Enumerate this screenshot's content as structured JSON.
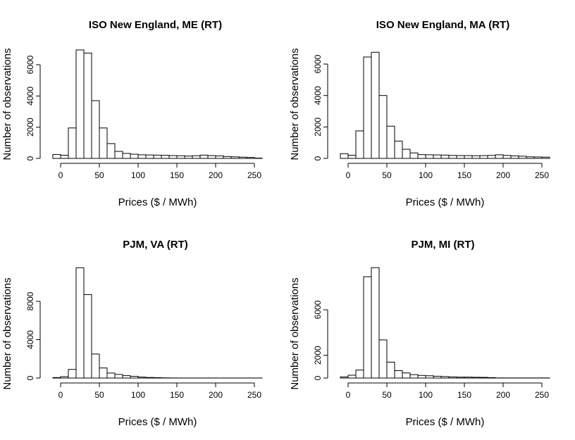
{
  "chart_data": [
    {
      "type": "bar",
      "title": "ISO New England, ME (RT)",
      "xlabel": "Prices ($ / MWh)",
      "ylabel": "Number of observations",
      "bin_width": 10,
      "bin_start": -20,
      "values": [
        0,
        250,
        200,
        1950,
        6950,
        6750,
        3700,
        1950,
        950,
        450,
        320,
        270,
        230,
        220,
        210,
        200,
        180,
        170,
        150,
        170,
        210,
        180,
        160,
        120,
        100,
        80,
        60,
        20
      ],
      "xticks": [
        0,
        50,
        100,
        150,
        200,
        250
      ],
      "yticks": [
        0,
        2000,
        4000,
        6000
      ],
      "xlim": [
        -20,
        260
      ],
      "ylim": [
        0,
        7000
      ]
    },
    {
      "type": "bar",
      "title": "ISO New England, MA (RT)",
      "xlabel": "Prices ($ / MWh)",
      "ylabel": "Number of observations",
      "bin_width": 10,
      "bin_start": -20,
      "values": [
        0,
        300,
        200,
        1750,
        6450,
        6750,
        4000,
        2050,
        1100,
        580,
        350,
        240,
        230,
        220,
        210,
        190,
        180,
        180,
        170,
        180,
        190,
        230,
        190,
        160,
        140,
        100,
        90,
        80
      ],
      "xticks": [
        0,
        50,
        100,
        150,
        200,
        250
      ],
      "yticks": [
        0,
        2000,
        4000,
        6000
      ],
      "xlim": [
        -20,
        260
      ],
      "ylim": [
        0,
        7000
      ]
    },
    {
      "type": "bar",
      "title": "PJM, VA (RT)",
      "xlabel": "Prices ($ / MWh)",
      "ylabel": "Number of observations",
      "bin_width": 10,
      "bin_start": -20,
      "values": [
        0,
        50,
        150,
        900,
        11500,
        8700,
        2500,
        1050,
        520,
        380,
        250,
        180,
        100,
        60,
        40,
        20,
        10,
        5,
        5,
        5,
        5,
        5,
        5,
        5,
        5,
        5,
        5,
        5
      ],
      "xticks": [
        0,
        50,
        100,
        150,
        200,
        250
      ],
      "yticks": [
        0,
        4000,
        8000
      ],
      "xlim": [
        -20,
        260
      ],
      "ylim": [
        0,
        12000
      ]
    },
    {
      "type": "bar",
      "title": "PJM, MI (RT)",
      "xlabel": "Prices ($ / MWh)",
      "ylabel": "Number of observations",
      "bin_width": 10,
      "bin_start": -20,
      "values": [
        0,
        100,
        250,
        700,
        8900,
        9700,
        3350,
        1400,
        650,
        450,
        300,
        230,
        200,
        160,
        130,
        100,
        80,
        80,
        70,
        60,
        40,
        10,
        10,
        10,
        10,
        10,
        10,
        10
      ],
      "xticks": [
        0,
        50,
        100,
        150,
        200,
        250
      ],
      "yticks": [
        0,
        2000,
        6000
      ],
      "xlim": [
        -20,
        260
      ],
      "ylim": [
        0,
        10000
      ]
    }
  ]
}
